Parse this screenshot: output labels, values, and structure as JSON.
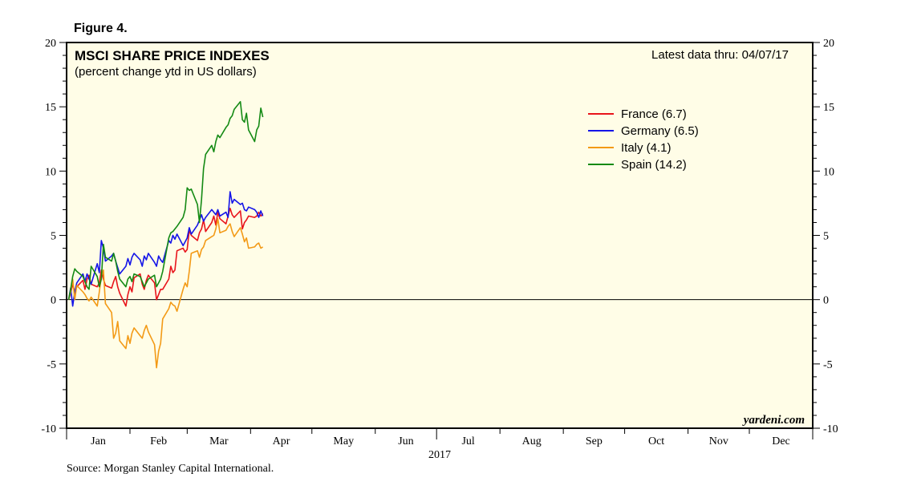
{
  "figure_label": "Figure 4.",
  "source": "Source: Morgan Stanley Capital International.",
  "watermark": "yardeni.com",
  "chart_data": {
    "type": "line",
    "title": "MSCI SHARE PRICE INDEXES",
    "subtitle": "(percent change ytd in US dollars)",
    "note": "Latest data thru: 04/07/17",
    "year_label": "2017",
    "xlabel": "",
    "ylabel": "",
    "x_range": [
      "2017-01-01",
      "2017-12-31"
    ],
    "ylim": [
      -10,
      20
    ],
    "y_ticks": [
      -10,
      -5,
      0,
      5,
      10,
      15,
      20
    ],
    "y_tick_labels": [
      "-10",
      "-5",
      "0",
      "5",
      "10",
      "15",
      "20"
    ],
    "months": [
      "Jan",
      "Feb",
      "Mar",
      "Apr",
      "May",
      "Jun",
      "Jul",
      "Aug",
      "Sep",
      "Oct",
      "Nov",
      "Dec"
    ],
    "legend_position": "top-right",
    "plot_background": "#fffde7",
    "grid": false,
    "x": [
      "2017-01-02",
      "2017-01-03",
      "2017-01-04",
      "2017-01-05",
      "2017-01-06",
      "2017-01-09",
      "2017-01-10",
      "2017-01-11",
      "2017-01-12",
      "2017-01-13",
      "2017-01-16",
      "2017-01-17",
      "2017-01-18",
      "2017-01-19",
      "2017-01-20",
      "2017-01-23",
      "2017-01-24",
      "2017-01-25",
      "2017-01-26",
      "2017-01-27",
      "2017-01-30",
      "2017-01-31",
      "2017-02-01",
      "2017-02-02",
      "2017-02-03",
      "2017-02-06",
      "2017-02-07",
      "2017-02-08",
      "2017-02-09",
      "2017-02-10",
      "2017-02-13",
      "2017-02-14",
      "2017-02-15",
      "2017-02-16",
      "2017-02-17",
      "2017-02-20",
      "2017-02-21",
      "2017-02-22",
      "2017-02-23",
      "2017-02-24",
      "2017-02-27",
      "2017-02-28",
      "2017-03-01",
      "2017-03-02",
      "2017-03-03",
      "2017-03-06",
      "2017-03-07",
      "2017-03-08",
      "2017-03-09",
      "2017-03-10",
      "2017-03-13",
      "2017-03-14",
      "2017-03-15",
      "2017-03-16",
      "2017-03-17",
      "2017-03-20",
      "2017-03-21",
      "2017-03-22",
      "2017-03-23",
      "2017-03-24",
      "2017-03-27",
      "2017-03-28",
      "2017-03-29",
      "2017-03-30",
      "2017-03-31",
      "2017-04-03",
      "2017-04-04",
      "2017-04-05",
      "2017-04-06",
      "2017-04-07"
    ],
    "series": [
      {
        "name": "France (6.7)",
        "color": "#e8141b",
        "values": [
          0.0,
          0.5,
          1.2,
          0.6,
          1.0,
          1.5,
          0.8,
          1.6,
          1.9,
          1.2,
          1.0,
          1.3,
          2.3,
          1.6,
          1.1,
          0.9,
          1.4,
          1.8,
          1.0,
          0.5,
          -0.5,
          0.4,
          1.0,
          0.6,
          1.7,
          2.0,
          1.2,
          0.8,
          1.5,
          1.9,
          1.3,
          0.0,
          0.4,
          0.8,
          0.8,
          1.6,
          2.6,
          2.1,
          2.3,
          3.8,
          4.0,
          3.7,
          3.9,
          5.4,
          5.0,
          4.6,
          5.2,
          5.5,
          6.2,
          5.3,
          6.0,
          6.5,
          5.8,
          6.8,
          6.3,
          5.9,
          6.5,
          7.1,
          6.6,
          6.4,
          6.9,
          5.5,
          6.0,
          6.2,
          6.5,
          6.4,
          6.5,
          6.8,
          6.5,
          6.7
        ]
      },
      {
        "name": "Germany (6.5)",
        "color": "#1414e8",
        "values": [
          0.0,
          0.9,
          -0.5,
          0.6,
          1.3,
          2.0,
          1.4,
          2.0,
          1.6,
          1.2,
          2.8,
          2.1,
          4.6,
          4.0,
          3.0,
          3.4,
          3.6,
          3.0,
          2.5,
          2.0,
          2.6,
          3.2,
          2.7,
          3.3,
          3.6,
          3.1,
          2.6,
          3.4,
          3.1,
          3.6,
          2.9,
          2.6,
          3.4,
          3.1,
          2.9,
          4.6,
          4.4,
          5.0,
          4.7,
          5.1,
          4.2,
          4.5,
          4.8,
          5.6,
          5.1,
          5.8,
          6.2,
          6.6,
          6.1,
          6.4,
          7.0,
          6.8,
          6.6,
          7.0,
          6.5,
          6.8,
          6.4,
          8.4,
          7.5,
          7.8,
          7.4,
          7.5,
          7.0,
          6.9,
          7.2,
          7.0,
          6.8,
          6.4,
          6.9,
          6.5
        ]
      },
      {
        "name": "Italy (4.1)",
        "color": "#f39a16",
        "values": [
          0.0,
          0.6,
          1.6,
          0.0,
          1.1,
          0.6,
          0.4,
          0.1,
          -0.1,
          0.2,
          -0.5,
          0.6,
          1.8,
          2.3,
          -0.3,
          -1.0,
          -3.0,
          -2.6,
          -1.7,
          -3.2,
          -3.8,
          -2.8,
          -3.4,
          -2.6,
          -2.2,
          -2.8,
          -3.0,
          -2.4,
          -2.0,
          -2.5,
          -3.5,
          -5.3,
          -4.0,
          -3.4,
          -1.5,
          -0.7,
          -0.2,
          -0.4,
          -0.5,
          -0.9,
          0.8,
          1.3,
          1.0,
          2.2,
          3.6,
          3.8,
          3.3,
          3.9,
          4.1,
          4.6,
          4.9,
          5.0,
          5.5,
          6.3,
          5.2,
          5.4,
          5.7,
          5.9,
          5.3,
          4.9,
          5.6,
          5.1,
          4.5,
          4.8,
          4.0,
          4.1,
          4.3,
          4.4,
          4.0,
          4.1
        ]
      },
      {
        "name": "Spain (14.2)",
        "color": "#148a14",
        "values": [
          0.0,
          0.8,
          1.8,
          2.4,
          2.2,
          1.8,
          1.4,
          1.0,
          0.8,
          2.6,
          1.8,
          1.0,
          1.6,
          4.3,
          3.3,
          3.0,
          3.6,
          3.0,
          2.2,
          1.6,
          1.0,
          1.6,
          1.8,
          1.4,
          2.0,
          1.8,
          1.4,
          1.0,
          1.3,
          1.6,
          1.9,
          1.0,
          1.3,
          1.6,
          2.2,
          4.8,
          5.2,
          5.3,
          5.5,
          5.7,
          6.4,
          7.0,
          8.7,
          8.5,
          8.6,
          7.4,
          6.0,
          7.8,
          10.2,
          11.3,
          12.0,
          11.5,
          12.3,
          12.8,
          12.6,
          13.4,
          13.6,
          14.1,
          14.3,
          14.8,
          15.4,
          14.0,
          13.8,
          14.5,
          13.2,
          12.3,
          13.2,
          13.5,
          14.9,
          14.2
        ]
      }
    ]
  }
}
